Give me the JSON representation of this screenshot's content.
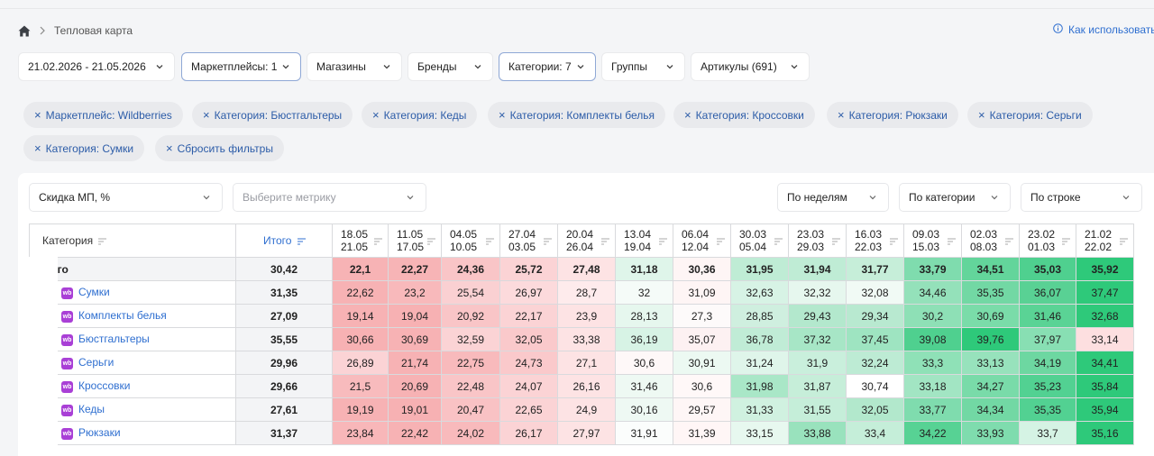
{
  "breadcrumb": {
    "home_icon": "home-icon",
    "separator_icon": "chevron-right-icon",
    "current": "Тепловая карта"
  },
  "help": {
    "icon": "info-icon",
    "label": "Как использовать"
  },
  "filters": [
    {
      "label": "21.02.2026 - 21.05.2026",
      "active": false
    },
    {
      "label": "Маркетплейсы: 1",
      "active": true
    },
    {
      "label": "Магазины",
      "active": false
    },
    {
      "label": "Бренды",
      "active": false
    },
    {
      "label": "Категории: 7",
      "active": true
    },
    {
      "label": "Группы",
      "active": false
    },
    {
      "label": "Артикулы (691)",
      "active": false
    }
  ],
  "chips": [
    "Маркетплейс: Wildberries",
    "Категория: Бюстгальтеры",
    "Категория: Кеды",
    "Категория: Комплекты белья",
    "Категория: Кроссовки",
    "Категория: Рюкзаки",
    "Категория: Серьги",
    "Категория: Сумки",
    "Сбросить фильтры"
  ],
  "controls": {
    "metric_primary": "Скидка МП, %",
    "metric_secondary_placeholder": "Выберите метрику",
    "period": "По неделям",
    "grouping": "По категории",
    "coloring": "По строке"
  },
  "table": {
    "col_category": "Категория",
    "col_total": "Итого",
    "weeks": [
      [
        "18.05",
        "21.05"
      ],
      [
        "11.05",
        "17.05"
      ],
      [
        "04.05",
        "10.05"
      ],
      [
        "27.04",
        "03.05"
      ],
      [
        "20.04",
        "26.04"
      ],
      [
        "13.04",
        "19.04"
      ],
      [
        "06.04",
        "12.04"
      ],
      [
        "30.03",
        "05.04"
      ],
      [
        "23.03",
        "29.03"
      ],
      [
        "16.03",
        "22.03"
      ],
      [
        "09.03",
        "15.03"
      ],
      [
        "02.03",
        "08.03"
      ],
      [
        "23.02",
        "01.03"
      ],
      [
        "21.02",
        "22.02"
      ]
    ],
    "rows": [
      {
        "name": "Итого",
        "is_total": true,
        "total": "30,42",
        "values": [
          "22,1",
          "22,27",
          "24,36",
          "25,72",
          "27,48",
          "31,18",
          "30,36",
          "31,95",
          "31,94",
          "31,77",
          "33,79",
          "34,51",
          "35,03",
          "35,92"
        ],
        "colors": [
          "#f7b3b5",
          "#f7b4b6",
          "#f9c5c7",
          "#fbd3d5",
          "#fde3e4",
          "#dff5ea",
          "#fef5f5",
          "#bfecd5",
          "#bfecd5",
          "#c6eed9",
          "#7fdcae",
          "#63d59b",
          "#4fd08f",
          "#2ec97a"
        ]
      },
      {
        "name": "Сумки",
        "badge": "wb",
        "total": "31,35",
        "values": [
          "22,62",
          "23,2",
          "25,54",
          "26,97",
          "28,7",
          "32",
          "31,09",
          "32,63",
          "32,32",
          "32,08",
          "34,46",
          "35,35",
          "36,07",
          "37,47"
        ],
        "colors": [
          "#f7b2b4",
          "#f8b9bb",
          "#fad0d2",
          "#fcdadc",
          "#feebec",
          "#f5fbf8",
          "#fef5f5",
          "#d7f3e5",
          "#e6f7ee",
          "#f1faf5",
          "#94e1ba",
          "#72d8a4",
          "#59d194",
          "#2ec97a"
        ]
      },
      {
        "name": "Комплекты белья",
        "badge": "wb",
        "total": "27,09",
        "values": [
          "19,14",
          "19,04",
          "20,92",
          "22,17",
          "23,9",
          "28,13",
          "27,3",
          "28,85",
          "29,43",
          "29,34",
          "30,2",
          "30,69",
          "31,46",
          "32,68"
        ],
        "colors": [
          "#f7b2b4",
          "#f7b1b3",
          "#f9c5c7",
          "#fbd3d5",
          "#fde3e4",
          "#e6f7ee",
          "#fdfafa",
          "#cfefdf",
          "#b3e8cd",
          "#b8e9d0",
          "#8ee0b6",
          "#7adca9",
          "#5ad395",
          "#2ec97a"
        ]
      },
      {
        "name": "Бюстгальтеры",
        "badge": "wb",
        "total": "35,55",
        "values": [
          "30,66",
          "30,69",
          "32,59",
          "32,05",
          "33,38",
          "36,19",
          "35,07",
          "36,78",
          "37,32",
          "37,45",
          "39,08",
          "39,76",
          "37,97",
          "33,14"
        ],
        "colors": [
          "#f7b1b3",
          "#f7b2b4",
          "#fbd3d5",
          "#fac9cb",
          "#fde3e4",
          "#d7f3e5",
          "#fdf1f2",
          "#c0ecd6",
          "#a7e6c6",
          "#9ee4c1",
          "#4fd08f",
          "#2ec97a",
          "#88dfb3",
          "#fddfe0"
        ]
      },
      {
        "name": "Серьги",
        "badge": "wb",
        "total": "29,96",
        "values": [
          "26,89",
          "21,74",
          "22,75",
          "24,73",
          "27,1",
          "30,6",
          "30,91",
          "31,24",
          "31,9",
          "32,24",
          "33,3",
          "33,13",
          "34,19",
          "34,41"
        ],
        "colors": [
          "#fbd3d5",
          "#f7b2b4",
          "#f8babc",
          "#fac9cb",
          "#fde3e4",
          "#fef8f8",
          "#ecf9f2",
          "#dff5ea",
          "#c9efdc",
          "#bdebd4",
          "#8fe1b7",
          "#97e2bc",
          "#6dd7a1",
          "#2ec97a"
        ]
      },
      {
        "name": "Кроссовки",
        "badge": "wb",
        "total": "29,66",
        "values": [
          "21,5",
          "20,69",
          "22,48",
          "24,07",
          "26,16",
          "31,46",
          "30,6",
          "31,98",
          "31,87",
          "30,74",
          "33,18",
          "34,27",
          "35,23",
          "35,84"
        ],
        "colors": [
          "#f8bbbd",
          "#f7b2b4",
          "#f9c5c7",
          "#fbd3d5",
          "#fde3e4",
          "#eef9f3",
          "#fff8f8",
          "#a9e7c7",
          "#c6eed9",
          "#ffffff",
          "#a2e5c3",
          "#79dba9",
          "#52d192",
          "#2ec97a"
        ]
      },
      {
        "name": "Кеды",
        "badge": "wb",
        "total": "27,61",
        "values": [
          "19,19",
          "19,01",
          "20,47",
          "22,65",
          "24,9",
          "30,16",
          "29,57",
          "31,33",
          "31,55",
          "32,05",
          "33,77",
          "34,34",
          "35,35",
          "35,94"
        ],
        "colors": [
          "#f7b2b4",
          "#f7b1b3",
          "#f9c2c4",
          "#fbd3d5",
          "#fde3e4",
          "#eef9f3",
          "#fef6f6",
          "#d0f1e0",
          "#c5eed9",
          "#b2e8cc",
          "#7fdcae",
          "#72d8a4",
          "#52d192",
          "#2ec97a"
        ]
      },
      {
        "name": "Рюкзаки",
        "badge": "wb",
        "total": "31,37",
        "values": [
          "23,84",
          "22,42",
          "24,02",
          "26,17",
          "27,97",
          "31,91",
          "31,39",
          "33,15",
          "33,88",
          "33,4",
          "34,22",
          "33,93",
          "33,7",
          "35,16"
        ],
        "colors": [
          "#f8b7b9",
          "#f7b2b4",
          "#f8babc",
          "#fbd3d5",
          "#fde3e4",
          "#fbfdfc",
          "#fff6f6",
          "#e7f8ef",
          "#99e2bd",
          "#c5eed9",
          "#57d294",
          "#7fdcae",
          "#d5f3e4",
          "#2ec97a"
        ]
      }
    ]
  }
}
